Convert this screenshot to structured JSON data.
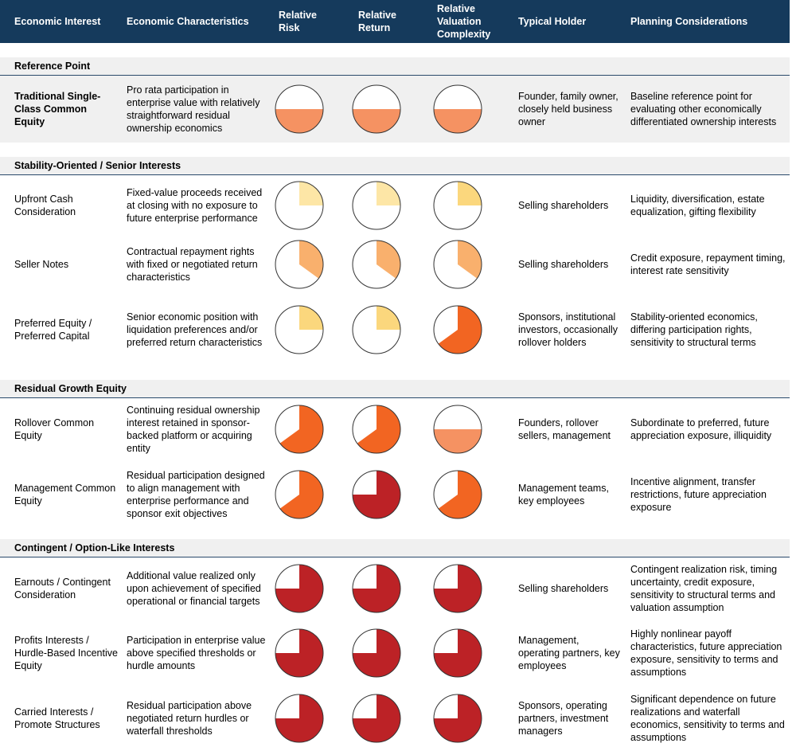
{
  "colors": {
    "header_bg": "#153a5c",
    "band_bg": "#f0f0f0",
    "divider": "#2a4a6b",
    "light_yellow": "#fde6a6",
    "yellow": "#fbd77d",
    "light_orange": "#f9b06d",
    "salmon": "#f59262",
    "orange": "#f26522",
    "red": "#bc2226"
  },
  "header": {
    "columns": [
      "Economic Interest",
      "Economic Characteristics",
      "Relative Risk",
      "Relative Return",
      "Relative Valuation Complexity",
      "Typical Holder",
      "Planning Considerations"
    ]
  },
  "sections": [
    {
      "label": "Reference Point",
      "rows": [
        {
          "interest": "Traditional Single-Class Common Equity",
          "characteristics": "Pro rata participation in enterprise value with relatively straightforward residual ownership economics",
          "risk": {
            "level": 0.5,
            "color": "salmon",
            "style": "half"
          },
          "return": {
            "level": 0.5,
            "color": "salmon",
            "style": "half"
          },
          "complexity": {
            "level": 0.5,
            "color": "salmon",
            "style": "half"
          },
          "holder": "Founder, family owner, closely held business owner",
          "planning": "Baseline reference point for evaluating other economically differentiated ownership interests"
        }
      ]
    },
    {
      "label": "Stability-Oriented / Senior Interests",
      "rows": [
        {
          "interest": "Upfront Cash Consideration",
          "characteristics": "Fixed-value proceeds received at closing with no exposure to future enterprise performance",
          "risk": {
            "level": 0.25,
            "color": "light_yellow",
            "style": "pie"
          },
          "return": {
            "level": 0.25,
            "color": "light_yellow",
            "style": "pie"
          },
          "complexity": {
            "level": 0.25,
            "color": "yellow",
            "style": "pie"
          },
          "holder": "Selling shareholders",
          "planning": "Liquidity, diversification, estate equalization, gifting flexibility"
        },
        {
          "interest": "Seller Notes",
          "characteristics": "Contractual repayment rights with fixed or negotiated return characteristics",
          "risk": {
            "level": 0.35,
            "color": "light_orange",
            "style": "pie"
          },
          "return": {
            "level": 0.35,
            "color": "light_orange",
            "style": "pie"
          },
          "complexity": {
            "level": 0.35,
            "color": "light_orange",
            "style": "pie"
          },
          "holder": "Selling shareholders",
          "planning": "Credit exposure, repayment timing, interest rate sensitivity"
        },
        {
          "interest": "Preferred Equity / Preferred Capital",
          "characteristics": "Senior economic position with liquidation preferences and/or preferred return characteristics",
          "risk": {
            "level": 0.25,
            "color": "yellow",
            "style": "pie"
          },
          "return": {
            "level": 0.25,
            "color": "yellow",
            "style": "pie"
          },
          "complexity": {
            "level": 0.65,
            "color": "orange",
            "style": "pie"
          },
          "holder": "Sponsors, institutional investors, occasionally rollover holders",
          "planning": "Stability-oriented economics, differing participation rights, sensitivity to structural terms"
        }
      ]
    },
    {
      "label": "Residual Growth Equity",
      "rows": [
        {
          "interest": "Rollover Common Equity",
          "characteristics": "Continuing residual ownership interest retained in sponsor-backed platform or acquiring entity",
          "risk": {
            "level": 0.65,
            "color": "orange",
            "style": "pie"
          },
          "return": {
            "level": 0.65,
            "color": "orange",
            "style": "pie"
          },
          "complexity": {
            "level": 0.5,
            "color": "salmon",
            "style": "half"
          },
          "holder": "Founders, rollover sellers, management",
          "planning": "Subordinate to preferred, future appreciation exposure, illiquidity"
        },
        {
          "interest": "Management Common Equity",
          "characteristics": "Residual participation designed to align management with enterprise performance and sponsor exit objectives",
          "risk": {
            "level": 0.65,
            "color": "orange",
            "style": "pie"
          },
          "return": {
            "level": 0.75,
            "color": "red",
            "style": "pie"
          },
          "complexity": {
            "level": 0.65,
            "color": "orange",
            "style": "pie"
          },
          "holder": "Management teams, key employees",
          "planning": "Incentive alignment, transfer restrictions, future appreciation exposure"
        }
      ]
    },
    {
      "label": "Contingent / Option-Like Interests",
      "rows": [
        {
          "interest": "Earnouts / Contingent Consideration",
          "characteristics": "Additional value realized only upon achievement of specified operational or financial targets",
          "risk": {
            "level": 0.75,
            "color": "red",
            "style": "pie"
          },
          "return": {
            "level": 0.75,
            "color": "red",
            "style": "pie"
          },
          "complexity": {
            "level": 0.75,
            "color": "red",
            "style": "pie"
          },
          "holder": "Selling shareholders",
          "planning": "Contingent realization risk, timing uncertainty, credit exposure, sensitivity to structural terms and valuation assumption"
        },
        {
          "interest": "Profits Interests / Hurdle-Based Incentive Equity",
          "characteristics": "Participation in enterprise value above specified thresholds or hurdle amounts",
          "risk": {
            "level": 0.75,
            "color": "red",
            "style": "pie"
          },
          "return": {
            "level": 0.75,
            "color": "red",
            "style": "pie"
          },
          "complexity": {
            "level": 0.75,
            "color": "red",
            "style": "pie"
          },
          "holder": "Management, operating partners, key employees",
          "planning": "Highly nonlinear payoff characteristics, future appreciation exposure, sensitivity to terms and assumptions"
        },
        {
          "interest": "Carried Interests / Promote Structures",
          "characteristics": "Residual participation above negotiated return hurdles or waterfall thresholds",
          "risk": {
            "level": 0.75,
            "color": "red",
            "style": "pie"
          },
          "return": {
            "level": 0.75,
            "color": "red",
            "style": "pie"
          },
          "complexity": {
            "level": 0.75,
            "color": "red",
            "style": "pie"
          },
          "holder": "Sponsors, operating partners, investment managers",
          "planning": "Significant dependence on future realizations and waterfall economics, sensitivity to terms and assumptions"
        }
      ]
    }
  ]
}
